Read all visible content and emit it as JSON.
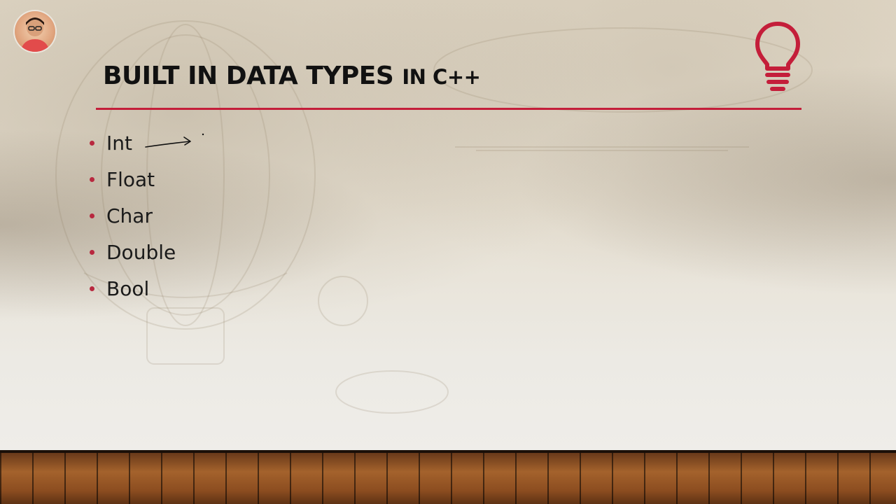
{
  "slide": {
    "title_main": "BUILT IN DATA TYPES",
    "title_suffix": "IN C++",
    "bullets": [
      "Int",
      "Float",
      "Char",
      "Double",
      "Bool"
    ]
  },
  "colors": {
    "accent": "#c41e3a",
    "text": "#111111",
    "bullet_dot": "#b8283f"
  },
  "icons": {
    "presenter": "presenter-avatar",
    "bulb": "lightbulb-icon",
    "annotation": "hand-drawn-arrow-icon"
  }
}
